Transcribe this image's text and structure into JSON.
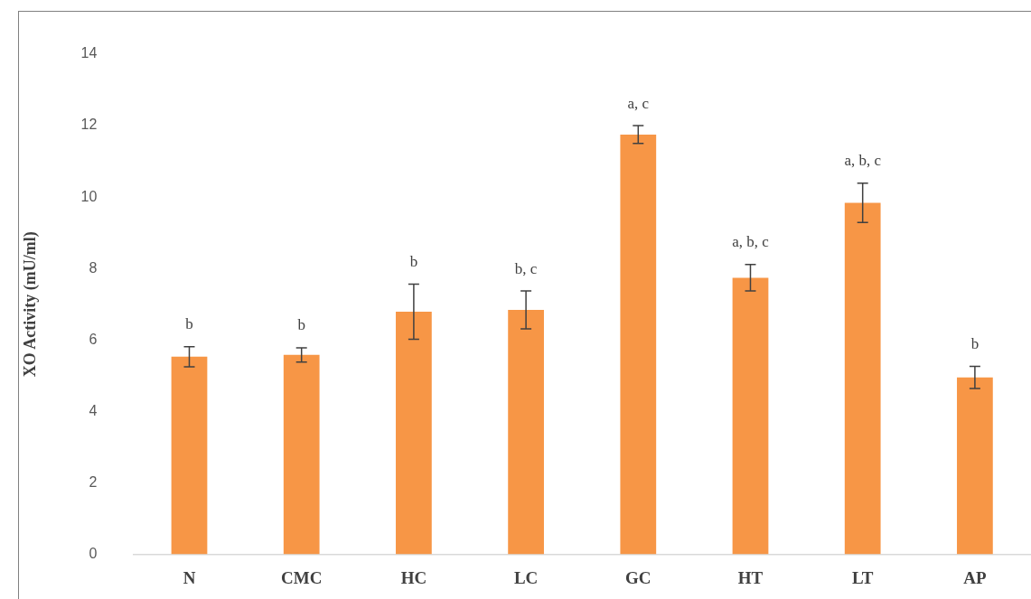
{
  "chart_data": {
    "type": "bar",
    "ylabel": "XO Activity (mU/ml)",
    "categories": [
      "N",
      "CMC",
      "HC",
      "LC",
      "GC",
      "HT",
      "LT",
      "AP"
    ],
    "values": [
      5.53,
      5.58,
      6.79,
      6.84,
      11.75,
      7.74,
      9.84,
      4.95
    ],
    "errors": [
      0.28,
      0.2,
      0.77,
      0.53,
      0.25,
      0.37,
      0.55,
      0.31
    ],
    "color": "#f79646",
    "ylim": [
      0,
      14
    ],
    "yticks": [
      0,
      2,
      4,
      6,
      8,
      10,
      12,
      14
    ],
    "grid": false,
    "legend": false,
    "annotations": [
      {
        "text": "b",
        "x": "N",
        "y": 5.53
      },
      {
        "text": "b",
        "x": "CMC",
        "y": 5.58
      },
      {
        "text": "b",
        "x": "HC",
        "y": 6.79
      },
      {
        "text": "b, c",
        "x": "LC",
        "y": 6.84
      },
      {
        "text": "a, c",
        "x": "GC",
        "y": 11.75
      },
      {
        "text": "a, b, c",
        "x": "HT",
        "y": 7.74
      },
      {
        "text": "a, b, c",
        "x": "LT",
        "y": 9.84
      },
      {
        "text": "b",
        "x": "AP",
        "y": 4.95
      }
    ]
  }
}
